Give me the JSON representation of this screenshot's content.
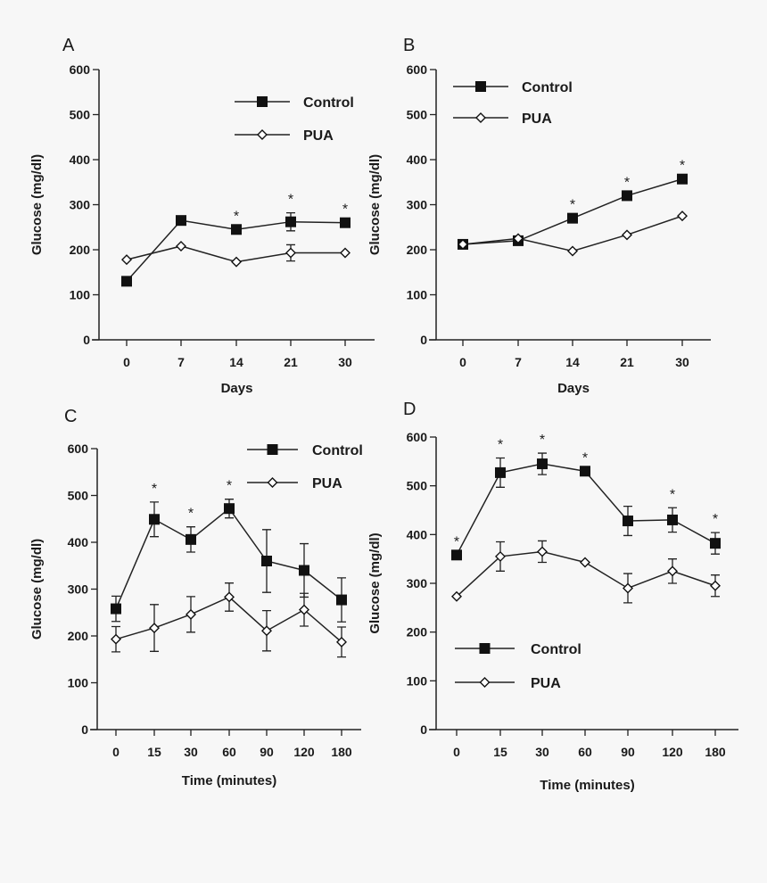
{
  "chart_data": [
    {
      "type": "line",
      "panel_label": "A",
      "xlabel": "Days",
      "ylabel": "Glucose (mg/dl)",
      "ylim": [
        0,
        600
      ],
      "yticks": [
        "0",
        "100",
        "200",
        "300",
        "400",
        "500",
        "600"
      ],
      "categories": [
        "0",
        "7",
        "14",
        "21",
        "30"
      ],
      "legend": [
        "Control",
        "PUA"
      ],
      "legend_placement": "top-right",
      "series": [
        {
          "name": "Control",
          "marker": "filled-square",
          "values": [
            130,
            265,
            245,
            262,
            260
          ],
          "errors": [
            0,
            0,
            0,
            20,
            0
          ]
        },
        {
          "name": "PUA",
          "marker": "open-diamond",
          "values": [
            178,
            208,
            173,
            193,
            193
          ],
          "errors": [
            0,
            0,
            0,
            18,
            0
          ]
        }
      ],
      "significance_marks": [
        "",
        "",
        "*",
        "*",
        "*"
      ],
      "annotation_text": "*"
    },
    {
      "type": "line",
      "panel_label": "B",
      "xlabel": "Days",
      "ylabel": "Glucose (mg/dl)",
      "ylim": [
        0,
        600
      ],
      "yticks": [
        "0",
        "100",
        "200",
        "300",
        "400",
        "500",
        "600"
      ],
      "categories": [
        "0",
        "7",
        "14",
        "21",
        "30"
      ],
      "legend": [
        "Control",
        "PUA"
      ],
      "legend_placement": "top-left",
      "series": [
        {
          "name": "Control",
          "marker": "filled-square",
          "values": [
            212,
            220,
            270,
            320,
            357
          ],
          "errors": [
            0,
            0,
            0,
            0,
            0
          ]
        },
        {
          "name": "PUA",
          "marker": "open-diamond",
          "values": [
            212,
            225,
            197,
            233,
            275
          ],
          "errors": [
            0,
            0,
            0,
            0,
            0
          ]
        }
      ],
      "significance_marks": [
        "",
        "",
        "*",
        "*",
        "*"
      ],
      "annotation_text": "*"
    },
    {
      "type": "line",
      "panel_label": "C",
      "xlabel": "Time (minutes)",
      "ylabel": "Glucose (mg/dl)",
      "ylim": [
        0,
        600
      ],
      "yticks": [
        "0",
        "100",
        "200",
        "300",
        "400",
        "500",
        "600"
      ],
      "categories": [
        "0",
        "15",
        "30",
        "60",
        "90",
        "120",
        "180"
      ],
      "legend": [
        "Control",
        "PUA"
      ],
      "legend_placement": "top-right",
      "series": [
        {
          "name": "Control",
          "marker": "filled-square",
          "values": [
            258,
            449,
            406,
            472,
            360,
            340,
            277
          ],
          "errors": [
            27,
            37,
            27,
            20,
            67,
            57,
            47
          ]
        },
        {
          "name": "PUA",
          "marker": "open-diamond",
          "values": [
            193,
            217,
            246,
            283,
            211,
            256,
            187
          ],
          "errors": [
            27,
            50,
            38,
            30,
            43,
            35,
            32
          ]
        }
      ],
      "significance_marks": [
        "",
        "*",
        "*",
        "*",
        "",
        "",
        ""
      ],
      "annotation_text": "*"
    },
    {
      "type": "line",
      "panel_label": "D",
      "xlabel": "Time (minutes)",
      "ylabel": "Glucose (mg/dl)",
      "ylim": [
        0,
        600
      ],
      "yticks": [
        "0",
        "100",
        "200",
        "300",
        "400",
        "500",
        "600"
      ],
      "categories": [
        "0",
        "15",
        "30",
        "60",
        "90",
        "120",
        "180"
      ],
      "legend": [
        "Control",
        "PUA"
      ],
      "legend_placement": "bottom-left",
      "series": [
        {
          "name": "Control",
          "marker": "filled-square",
          "values": [
            358,
            527,
            545,
            530,
            428,
            430,
            382
          ],
          "errors": [
            0,
            30,
            22,
            0,
            30,
            25,
            22
          ]
        },
        {
          "name": "PUA",
          "marker": "open-diamond",
          "values": [
            273,
            355,
            365,
            343,
            290,
            325,
            295
          ],
          "errors": [
            0,
            30,
            22,
            0,
            30,
            25,
            22
          ]
        }
      ],
      "significance_marks": [
        "*",
        "*",
        "*",
        "*",
        "",
        "*",
        "*"
      ],
      "annotation_text": "*"
    }
  ]
}
